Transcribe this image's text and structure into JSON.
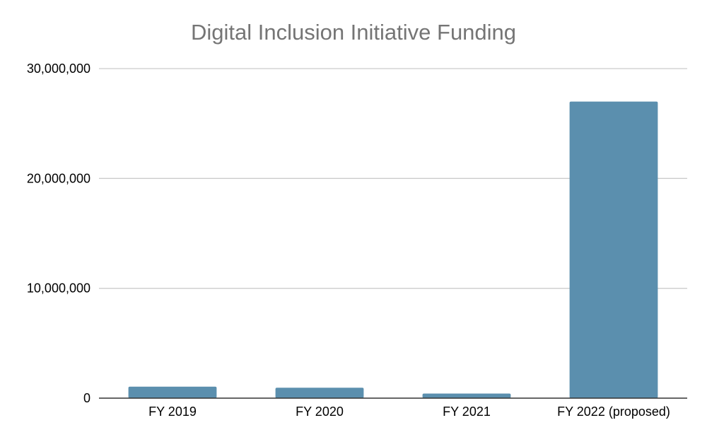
{
  "chart_data": {
    "type": "bar",
    "title": "Digital Inclusion Initiative Funding",
    "xlabel": "",
    "ylabel": "",
    "categories": [
      "FY 2019",
      "FY 2020",
      "FY 2021",
      "FY 2022 (proposed)"
    ],
    "series": [
      {
        "values": [
          1050000,
          950000,
          420000,
          27000000
        ]
      }
    ],
    "ylim": [
      0,
      30000000
    ],
    "yticks": [
      0,
      10000000,
      20000000,
      30000000
    ],
    "ytick_labels": [
      "0",
      "10,000,000",
      "20,000,000",
      "30,000,000"
    ],
    "grid": true,
    "legend": "none",
    "colors": {
      "bar": "#5b8fae",
      "grid": "#cccccc",
      "axis": "#333333",
      "title": "#757575"
    }
  }
}
